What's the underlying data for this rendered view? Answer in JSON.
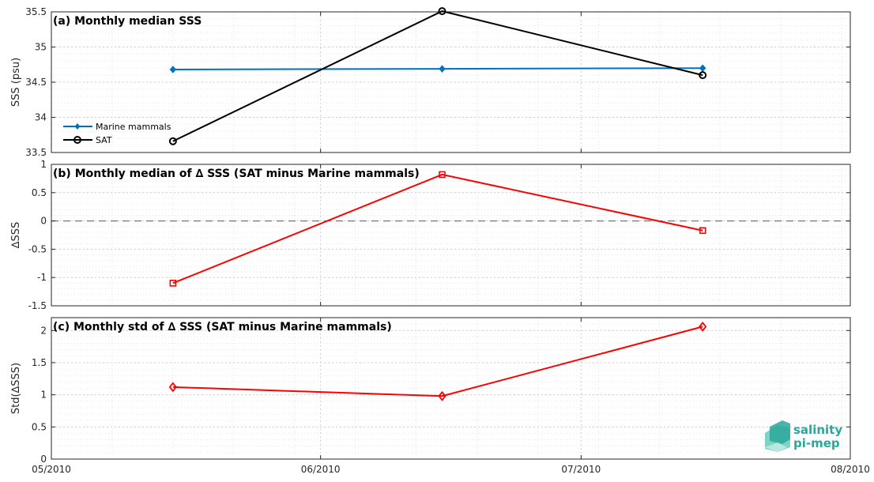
{
  "chart_data": [
    {
      "type": "line",
      "title": "(a) Monthly median SSS",
      "ylabel": "SSS (psu)",
      "ylim": [
        33.5,
        35.5
      ],
      "yticks": [
        33.5,
        34,
        34.5,
        35,
        35.5
      ],
      "ytick_labels": [
        "33.5",
        "34",
        "34.5",
        "35",
        "35.5"
      ],
      "grid": true,
      "legend_position": "lower-left",
      "series": [
        {
          "name": "Marine mammals",
          "color": "#0072bd",
          "marker": "diamond-filled",
          "x": [
            "2010-05-15",
            "2010-06-15",
            "2010-07-15"
          ],
          "values": [
            34.68,
            34.69,
            34.7
          ]
        },
        {
          "name": "SAT",
          "color": "#000000",
          "marker": "circle-open",
          "x": [
            "2010-05-15",
            "2010-06-15",
            "2010-07-15"
          ],
          "values": [
            33.66,
            35.51,
            34.6
          ]
        }
      ]
    },
    {
      "type": "line",
      "title": "(b) Monthly median of ∆ SSS (SAT minus Marine mammals)",
      "ylabel": "∆SSS",
      "ylim": [
        -1.5,
        1
      ],
      "yticks": [
        -1.5,
        -1,
        -0.5,
        0,
        0.5,
        1
      ],
      "ytick_labels": [
        "-1.5",
        "-1",
        "-0.5",
        "0",
        "0.5",
        "1"
      ],
      "grid": true,
      "reference_line": 0,
      "series": [
        {
          "color": "#ff0000",
          "marker": "square-open",
          "x": [
            "2010-05-15",
            "2010-06-15",
            "2010-07-15"
          ],
          "values": [
            -1.1,
            0.82,
            -0.17
          ]
        }
      ]
    },
    {
      "type": "line",
      "title": "(c) Monthly std of ∆ SSS (SAT minus Marine mammals)",
      "ylabel": "Std(∆SSS)",
      "ylim": [
        0,
        2.2
      ],
      "yticks": [
        0,
        0.5,
        1,
        1.5,
        2
      ],
      "ytick_labels": [
        "0",
        "0.5",
        "1",
        "1.5",
        "2"
      ],
      "grid": true,
      "series": [
        {
          "color": "#ff0000",
          "marker": "diamond-open",
          "x": [
            "2010-05-15",
            "2010-06-15",
            "2010-07-15"
          ],
          "values": [
            1.12,
            0.98,
            2.06
          ]
        }
      ]
    }
  ],
  "x_axis": {
    "range": [
      "2010-05-01",
      "2010-08-01"
    ],
    "ticks": [
      "2010-05-01",
      "2010-06-01",
      "2010-07-01",
      "2010-08-01"
    ],
    "tick_labels": [
      "05/2010",
      "06/2010",
      "07/2010",
      "08/2010"
    ]
  },
  "logo": {
    "line1": "salinity",
    "line2": "pi-mep"
  }
}
